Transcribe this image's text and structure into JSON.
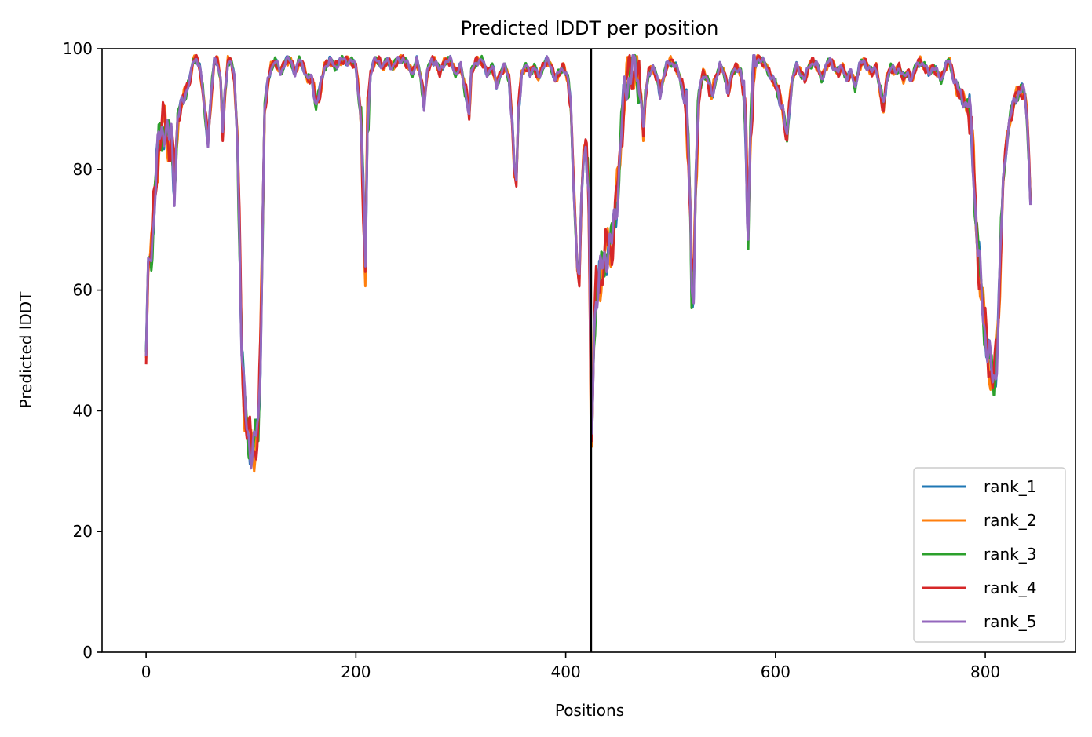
{
  "chart_data": {
    "type": "line",
    "title": "Predicted lDDT per position",
    "xlabel": "Positions",
    "ylabel": "Predicted lDDT",
    "xlim": [
      -42,
      886
    ],
    "ylim": [
      0,
      100
    ],
    "xticks": [
      0,
      200,
      400,
      600,
      800
    ],
    "yticks": [
      0,
      20,
      40,
      60,
      80,
      100
    ],
    "grid": false,
    "legend_position": "lower-right",
    "chain_break": 424,
    "base_profile": [
      [
        0,
        49
      ],
      [
        2,
        64
      ],
      [
        5,
        66
      ],
      [
        8,
        76
      ],
      [
        12,
        84
      ],
      [
        16,
        87
      ],
      [
        18,
        88
      ],
      [
        20,
        86
      ],
      [
        22,
        84
      ],
      [
        24,
        85
      ],
      [
        27,
        78
      ],
      [
        30,
        88
      ],
      [
        34,
        91
      ],
      [
        38,
        93
      ],
      [
        42,
        95
      ],
      [
        45,
        98
      ],
      [
        48,
        98.5
      ],
      [
        51,
        97
      ],
      [
        54,
        93
      ],
      [
        57,
        88
      ],
      [
        59,
        85
      ],
      [
        62,
        92
      ],
      [
        65,
        98
      ],
      [
        68,
        98
      ],
      [
        71,
        95
      ],
      [
        73,
        86
      ],
      [
        75,
        92
      ],
      [
        78,
        98
      ],
      [
        81,
        98
      ],
      [
        84,
        95
      ],
      [
        87,
        85
      ],
      [
        89,
        70
      ],
      [
        91,
        52
      ],
      [
        93,
        43
      ],
      [
        95,
        38
      ],
      [
        97,
        36
      ],
      [
        99,
        35
      ],
      [
        101,
        34
      ],
      [
        103,
        34
      ],
      [
        105,
        35
      ],
      [
        107,
        37
      ],
      [
        109,
        50
      ],
      [
        111,
        70
      ],
      [
        113,
        90
      ],
      [
        116,
        94
      ],
      [
        119,
        97
      ],
      [
        123,
        98
      ],
      [
        128,
        96
      ],
      [
        133,
        98
      ],
      [
        138,
        98
      ],
      [
        142,
        96
      ],
      [
        146,
        98
      ],
      [
        150,
        97
      ],
      [
        154,
        95
      ],
      [
        158,
        95
      ],
      [
        162,
        91
      ],
      [
        166,
        93
      ],
      [
        170,
        97
      ],
      [
        175,
        98
      ],
      [
        180,
        97
      ],
      [
        185,
        98
      ],
      [
        190,
        98
      ],
      [
        195,
        98
      ],
      [
        200,
        97
      ],
      [
        203,
        92
      ],
      [
        205,
        88
      ],
      [
        207,
        75
      ],
      [
        209,
        62
      ],
      [
        211,
        88
      ],
      [
        214,
        96
      ],
      [
        218,
        98
      ],
      [
        222,
        98
      ],
      [
        226,
        97
      ],
      [
        230,
        98
      ],
      [
        235,
        97
      ],
      [
        240,
        98
      ],
      [
        245,
        98.5
      ],
      [
        250,
        97
      ],
      [
        254,
        96
      ],
      [
        258,
        98
      ],
      [
        262,
        95
      ],
      [
        265,
        91
      ],
      [
        268,
        96
      ],
      [
        272,
        98
      ],
      [
        276,
        98
      ],
      [
        280,
        96
      ],
      [
        285,
        98
      ],
      [
        290,
        98
      ],
      [
        295,
        96
      ],
      [
        300,
        97
      ],
      [
        303,
        94
      ],
      [
        306,
        92
      ],
      [
        308,
        89
      ],
      [
        310,
        96
      ],
      [
        315,
        98
      ],
      [
        320,
        98
      ],
      [
        325,
        96
      ],
      [
        330,
        97
      ],
      [
        334,
        94
      ],
      [
        338,
        96
      ],
      [
        342,
        97
      ],
      [
        346,
        95
      ],
      [
        349,
        88
      ],
      [
        351,
        80
      ],
      [
        353,
        78
      ],
      [
        355,
        90
      ],
      [
        358,
        96
      ],
      [
        362,
        97
      ],
      [
        366,
        96
      ],
      [
        370,
        97
      ],
      [
        374,
        95
      ],
      [
        378,
        97
      ],
      [
        382,
        98
      ],
      [
        386,
        97
      ],
      [
        390,
        95
      ],
      [
        394,
        96
      ],
      [
        398,
        97
      ],
      [
        402,
        95
      ],
      [
        405,
        90
      ],
      [
        407,
        80
      ],
      [
        409,
        72
      ],
      [
        411,
        64
      ],
      [
        413,
        62
      ],
      [
        415,
        75
      ],
      [
        417,
        82
      ],
      [
        419,
        84
      ],
      [
        421,
        80
      ],
      [
        422,
        76
      ],
      [
        423,
        60
      ],
      [
        424,
        40
      ],
      [
        425,
        35
      ],
      [
        427,
        53
      ],
      [
        429,
        60
      ],
      [
        432,
        62
      ],
      [
        435,
        63
      ],
      [
        438,
        66
      ],
      [
        441,
        68
      ],
      [
        444,
        67
      ],
      [
        447,
        72
      ],
      [
        450,
        78
      ],
      [
        453,
        86
      ],
      [
        456,
        92
      ],
      [
        460,
        96
      ],
      [
        465,
        97
      ],
      [
        469,
        95
      ],
      [
        472,
        92
      ],
      [
        474,
        86
      ],
      [
        476,
        92
      ],
      [
        479,
        96
      ],
      [
        483,
        97
      ],
      [
        487,
        95
      ],
      [
        490,
        93
      ],
      [
        493,
        95
      ],
      [
        496,
        97
      ],
      [
        500,
        98
      ],
      [
        505,
        97
      ],
      [
        509,
        95
      ],
      [
        512,
        93
      ],
      [
        515,
        90
      ],
      [
        517,
        82
      ],
      [
        519,
        72
      ],
      [
        520,
        60
      ],
      [
        522,
        62
      ],
      [
        524,
        78
      ],
      [
        527,
        92
      ],
      [
        531,
        96
      ],
      [
        535,
        95
      ],
      [
        539,
        92
      ],
      [
        543,
        95
      ],
      [
        547,
        97
      ],
      [
        551,
        96
      ],
      [
        555,
        93
      ],
      [
        559,
        96
      ],
      [
        563,
        97
      ],
      [
        567,
        96
      ],
      [
        570,
        92
      ],
      [
        572,
        85
      ],
      [
        573,
        75
      ],
      [
        574,
        70
      ],
      [
        576,
        85
      ],
      [
        579,
        96
      ],
      [
        583,
        98.5
      ],
      [
        587,
        98
      ],
      [
        591,
        97
      ],
      [
        594,
        96
      ],
      [
        597,
        95
      ],
      [
        600,
        94
      ],
      [
        604,
        92
      ],
      [
        607,
        90
      ],
      [
        609,
        87
      ],
      [
        611,
        85
      ],
      [
        613,
        90
      ],
      [
        616,
        95
      ],
      [
        620,
        97
      ],
      [
        624,
        96
      ],
      [
        628,
        95
      ],
      [
        632,
        97
      ],
      [
        636,
        98
      ],
      [
        640,
        97
      ],
      [
        644,
        95
      ],
      [
        648,
        97
      ],
      [
        652,
        98
      ],
      [
        656,
        97
      ],
      [
        660,
        96
      ],
      [
        664,
        97
      ],
      [
        668,
        95
      ],
      [
        672,
        96
      ],
      [
        676,
        94
      ],
      [
        680,
        97
      ],
      [
        684,
        98
      ],
      [
        688,
        97
      ],
      [
        692,
        96
      ],
      [
        696,
        97
      ],
      [
        700,
        93
      ],
      [
        703,
        90
      ],
      [
        706,
        95
      ],
      [
        710,
        97
      ],
      [
        714,
        96
      ],
      [
        718,
        97
      ],
      [
        722,
        95
      ],
      [
        726,
        96
      ],
      [
        730,
        95
      ],
      [
        734,
        97
      ],
      [
        738,
        98
      ],
      [
        742,
        97
      ],
      [
        746,
        96
      ],
      [
        750,
        97
      ],
      [
        754,
        96
      ],
      [
        758,
        95
      ],
      [
        762,
        97
      ],
      [
        766,
        98
      ],
      [
        770,
        95
      ],
      [
        774,
        93
      ],
      [
        778,
        92
      ],
      [
        781,
        91
      ],
      [
        784,
        90
      ],
      [
        787,
        86
      ],
      [
        789,
        80
      ],
      [
        791,
        72
      ],
      [
        793,
        66
      ],
      [
        795,
        62
      ],
      [
        797,
        58
      ],
      [
        799,
        55
      ],
      [
        801,
        52
      ],
      [
        803,
        49
      ],
      [
        805,
        47
      ],
      [
        807,
        45
      ],
      [
        809,
        46
      ],
      [
        811,
        50
      ],
      [
        813,
        58
      ],
      [
        815,
        68
      ],
      [
        817,
        78
      ],
      [
        820,
        84
      ],
      [
        823,
        88
      ],
      [
        826,
        90
      ],
      [
        829,
        92
      ],
      [
        832,
        93
      ],
      [
        835,
        93
      ],
      [
        838,
        92
      ],
      [
        840,
        88
      ],
      [
        842,
        80
      ],
      [
        843,
        75
      ]
    ],
    "series": [
      {
        "name": "rank_1",
        "color": "#1f77b4"
      },
      {
        "name": "rank_2",
        "color": "#ff7f0e"
      },
      {
        "name": "rank_3",
        "color": "#2ca02c"
      },
      {
        "name": "rank_4",
        "color": "#d62728"
      },
      {
        "name": "rank_5",
        "color": "#9467bd"
      }
    ]
  }
}
